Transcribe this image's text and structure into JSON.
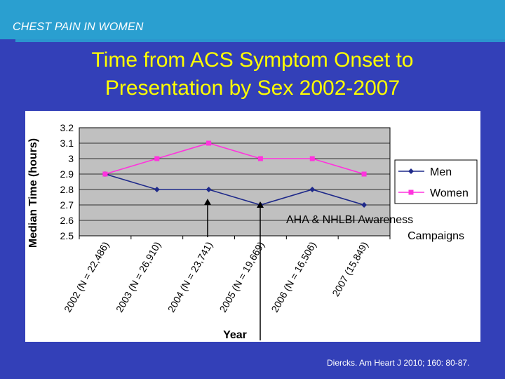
{
  "header": {
    "section_label": "CHEST PAIN IN WOMEN"
  },
  "slide": {
    "title_line1": "Time from ACS Symptom Onset to",
    "title_line2": "Presentation by Sex 2002-2007",
    "annotation_line1": "AHA & NHLBI Awareness",
    "annotation_line2": "Campaigns",
    "citation": "Diercks. Am Heart J 2010; 160: 80-87."
  },
  "colors": {
    "background": "#3340b8",
    "header": "#2a9fd0",
    "title": "#ffff00",
    "men": "#1f2a8a",
    "women": "#ff33dd",
    "plot_bg": "#c0c0c0"
  },
  "chart_data": {
    "type": "line",
    "title": "",
    "xlabel": "Year",
    "ylabel": "Median Time (hours)",
    "ylim": [
      2.5,
      3.2
    ],
    "yticks": [
      "2.5",
      "2.6",
      "2.7",
      "2.8",
      "2.9",
      "3",
      "3.1",
      "3.2"
    ],
    "categories": [
      "2002 (N = 22,486)",
      "2003 (N = 26,910)",
      "2004 (N = 23,741)",
      "2005 (N = 19,669)",
      "2006 (N = 16,506)",
      "2007 (15,849)"
    ],
    "series": [
      {
        "name": "Men",
        "values": [
          2.9,
          2.8,
          2.8,
          2.7,
          2.8,
          2.7
        ]
      },
      {
        "name": "Women",
        "values": [
          2.9,
          3.0,
          3.1,
          3.0,
          3.0,
          2.9
        ]
      }
    ],
    "grid": true,
    "legend_position": "right"
  }
}
